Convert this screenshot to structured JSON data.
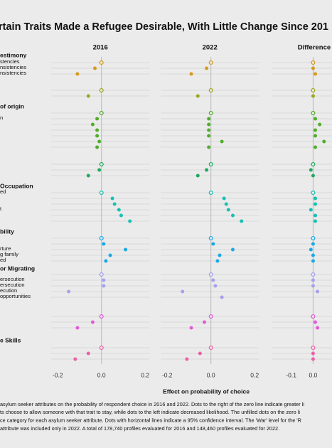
{
  "chart_data": {
    "type": "dotplot",
    "title": "rtain Traits Made a Refugee Desirable, With Little Change Since 201",
    "x_label": "Effect on probability of choice",
    "caption": [
      "asylum seeker attributes on the probability of respondent choice in 2016 and 2022. Dots to the right of the zero line indicate greater li",
      "ts choose to allow someone with that trait to stay, while dots to the left indicate decreased likelihood. The unfilled dots on the zero li",
      "ce category for each asylum seeker attribute. Dots with horizontal lines indicate a 95% confidence interval. The 'War' level for the 'R",
      "attribute was included only in 2022. A total of 178,740 profiles evaluated for 2016 and 148,460 profiles evaluated for 2022."
    ],
    "panels": [
      {
        "title": "2016",
        "xlim": [
          -0.23,
          0.22
        ],
        "xticks": [
          -0.2,
          {
            "value": 0,
            "label": "0.0"
          },
          0.2
        ]
      },
      {
        "title": "2022",
        "xlim": [
          -0.23,
          0.22
        ],
        "xticks": [
          -0.2,
          {
            "value": 0,
            "label": "0.0"
          },
          0.2
        ]
      },
      {
        "title": "Difference",
        "xlim": [
          -0.19,
          0.2
        ],
        "xticks": [
          -0.1,
          {
            "value": 0,
            "label": "0.0"
          }
        ]
      }
    ],
    "groups": [
      {
        "label": "estimony",
        "color": "#d69a1c",
        "reference": 0,
        "rows": [
          {
            "label": "stencies",
            "values": [
              0,
              0,
              0
            ]
          },
          {
            "label": "nsistencies",
            "values": [
              -0.03,
              -0.02,
              0.0
            ]
          },
          {
            "label": "nsistencies",
            "values": [
              -0.11,
              -0.09,
              0.01
            ]
          }
        ]
      },
      {
        "label": null,
        "color": "#9da51c",
        "reference": 0,
        "rows": [
          {
            "label": null,
            "values": [
              0,
              0,
              0
            ]
          },
          {
            "label": null,
            "values": [
              -0.06,
              -0.06,
              0.0
            ]
          }
        ]
      },
      {
        "label": "of origin",
        "color": "#4fae2a",
        "reference": 0,
        "rows": [
          {
            "label": null,
            "values": [
              0,
              0,
              0
            ]
          },
          {
            "label": "n",
            "values": [
              -0.02,
              -0.01,
              0.01
            ]
          },
          {
            "label": null,
            "values": [
              -0.04,
              -0.01,
              0.03
            ]
          },
          {
            "label": null,
            "values": [
              -0.02,
              -0.01,
              0.01
            ]
          },
          {
            "label": null,
            "values": [
              -0.02,
              -0.01,
              0.01
            ]
          },
          {
            "label": null,
            "values": [
              -0.01,
              0.05,
              0.05
            ]
          },
          {
            "label": null,
            "values": [
              -0.02,
              -0.01,
              0.01
            ]
          }
        ]
      },
      {
        "label": null,
        "color": "#1faa5f",
        "reference": 0,
        "rows": [
          {
            "label": null,
            "values": [
              0,
              0,
              0
            ]
          },
          {
            "label": null,
            "values": [
              -0.01,
              -0.02,
              -0.01
            ]
          },
          {
            "label": null,
            "values": [
              -0.06,
              -0.06,
              0.0
            ]
          }
        ]
      },
      {
        "label": "Occupation",
        "color": "#16c1b2",
        "reference": 0,
        "rows": [
          {
            "label": "ed",
            "values": [
              0,
              0,
              0
            ]
          },
          {
            "label": null,
            "values": [
              0.05,
              0.06,
              0.01
            ]
          },
          {
            "label": null,
            "values": [
              0.06,
              0.07,
              0.01
            ]
          },
          {
            "label": "t",
            "values": [
              0.08,
              0.08,
              -0.01
            ]
          },
          {
            "label": null,
            "values": [
              0.09,
              0.1,
              0.01
            ]
          },
          {
            "label": null,
            "values": [
              0.13,
              0.14,
              0.01
            ]
          }
        ]
      },
      {
        "label": "bility",
        "color": "#1aa9e6",
        "reference": 0,
        "rows": [
          {
            "label": null,
            "values": [
              0,
              0,
              0
            ]
          },
          {
            "label": null,
            "values": [
              0.01,
              0.01,
              0.0
            ]
          },
          {
            "label": "rture",
            "values": [
              0.11,
              0.1,
              -0.01
            ]
          },
          {
            "label": "g family",
            "values": [
              0.04,
              0.04,
              0.0
            ]
          },
          {
            "label": "ed",
            "values": [
              0.02,
              0.03,
              0.0
            ]
          }
        ]
      },
      {
        "label": "or Migrating",
        "color": "#a6a0ee",
        "reference": 0,
        "rows": [
          {
            "label": null,
            "values": [
              0,
              0,
              0
            ]
          },
          {
            "label": "ersecution",
            "values": [
              0.01,
              0.01,
              0.0
            ]
          },
          {
            "label": "ersecution",
            "values": [
              0.01,
              0.02,
              0.0
            ]
          },
          {
            "label": "ecution",
            "values": [
              -0.15,
              -0.13,
              0.02
            ]
          },
          {
            "label": "opportunities",
            "values": [
              null,
              0.05,
              null
            ]
          }
        ]
      },
      {
        "label": null,
        "color": "#e25bd6",
        "reference": 0,
        "rows": [
          {
            "label": null,
            "values": [
              0,
              0,
              0
            ]
          },
          {
            "label": null,
            "values": [
              -0.04,
              -0.03,
              0.01
            ]
          },
          {
            "label": null,
            "values": [
              -0.11,
              -0.09,
              0.02
            ]
          }
        ]
      },
      {
        "label": "e Skills",
        "color": "#ee5fa8",
        "reference": 0,
        "rows": [
          {
            "label": null,
            "values": [
              0,
              0,
              0
            ]
          },
          {
            "label": null,
            "values": [
              -0.06,
              -0.05,
              0.0
            ]
          },
          {
            "label": null,
            "values": [
              -0.12,
              -0.11,
              0.0
            ]
          }
        ]
      }
    ]
  }
}
